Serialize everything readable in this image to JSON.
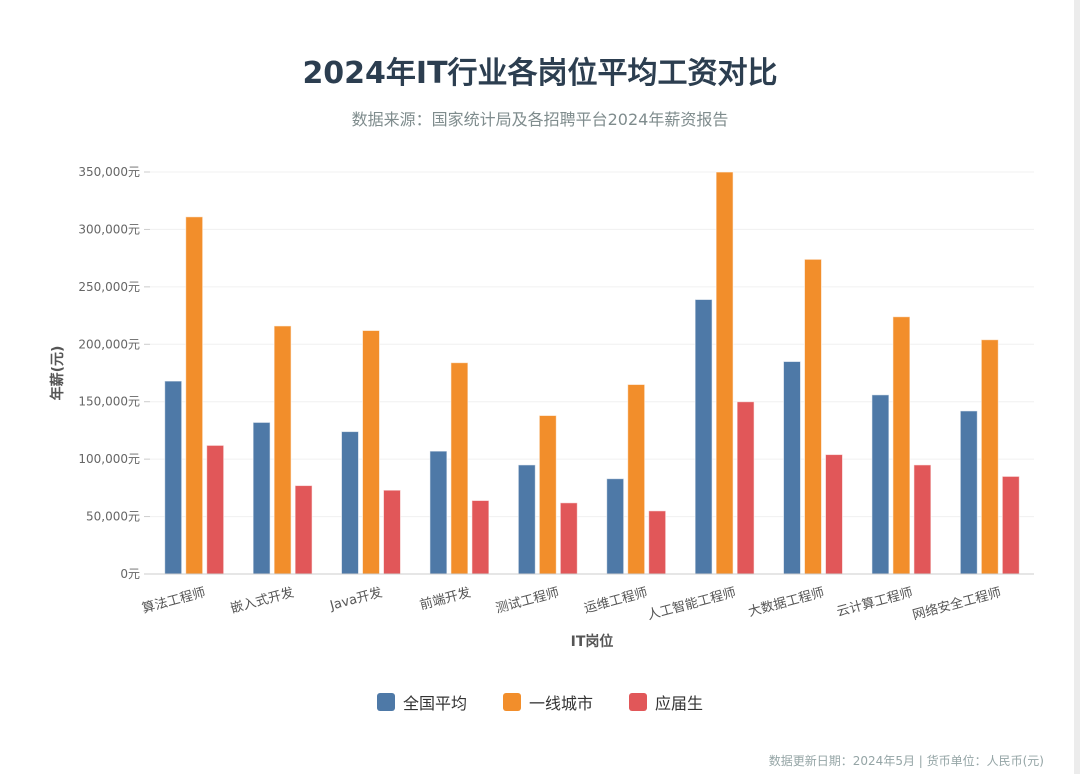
{
  "title": "2024年IT行业各岗位平均工资对比",
  "subtitle": "数据来源：国家统计局及各招聘平台2024年薪资报告",
  "footer": "数据更新日期：2024年5月 | 货币单位：人民币(元)",
  "chart_data": {
    "type": "bar",
    "xlabel": "IT岗位",
    "ylabel": "年薪(元)",
    "ylim": [
      0,
      350000
    ],
    "yticks": [
      "0元",
      "50,000元",
      "100,000元",
      "150,000元",
      "200,000元",
      "250,000元",
      "300,000元",
      "350,000元"
    ],
    "grid": true,
    "legend_position": "bottom",
    "categories": [
      "算法工程师",
      "嵌入式开发",
      "Java开发",
      "前端开发",
      "测试工程师",
      "运维工程师",
      "人工智能工程师",
      "大数据工程师",
      "云计算工程师",
      "网络安全工程师"
    ],
    "series": [
      {
        "name": "全国平均",
        "color": "#4e79a7",
        "values": [
          168000,
          132000,
          124000,
          107000,
          95000,
          83000,
          239000,
          185000,
          156000,
          142000
        ]
      },
      {
        "name": "一线城市",
        "color": "#f28e2b",
        "values": [
          311000,
          216000,
          212000,
          184000,
          138000,
          165000,
          350000,
          274000,
          224000,
          204000
        ]
      },
      {
        "name": "应届生",
        "color": "#e15759",
        "values": [
          112000,
          77000,
          73000,
          64000,
          62000,
          55000,
          150000,
          104000,
          95000,
          85000
        ]
      }
    ]
  }
}
